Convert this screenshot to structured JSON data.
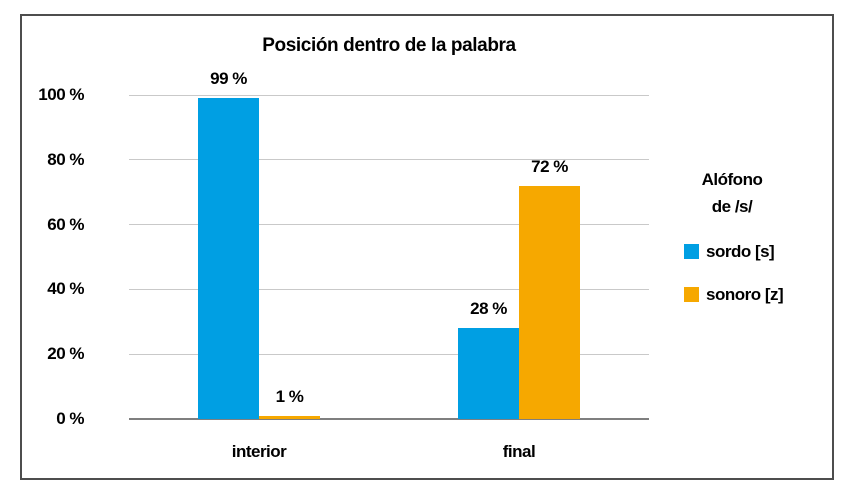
{
  "chart_data": {
    "type": "bar",
    "title": "Posición dentro de la palabra",
    "categories": [
      "interior",
      "final"
    ],
    "series": [
      {
        "name": "sordo [s]",
        "color": "#009FE3",
        "values": [
          99,
          28
        ],
        "labels": [
          "99 %",
          "28 %"
        ]
      },
      {
        "name": "sonoro [z]",
        "color": "#F6A800",
        "values": [
          1,
          72
        ],
        "labels": [
          "1 %",
          "72 %"
        ]
      }
    ],
    "y_axis": {
      "ylim": [
        0,
        100
      ],
      "ticks": [
        0,
        20,
        40,
        60,
        80,
        100
      ],
      "tick_labels": [
        "0 %",
        "20 %",
        "40 %",
        "60 %",
        "80 %",
        "100 %"
      ],
      "grid": true
    },
    "legend": {
      "position": "right",
      "title_lines": [
        "Alófono",
        "de /s/"
      ],
      "entries": [
        {
          "label": "sordo [s]",
          "color": "#009FE3"
        },
        {
          "label": "sonoro [z]",
          "color": "#F6A800"
        }
      ]
    },
    "colors": {
      "gridline": "#c9c9c9",
      "axis_line": "#7f7f7f",
      "frame_border": "#4d4d4d",
      "text": "#000000"
    }
  }
}
